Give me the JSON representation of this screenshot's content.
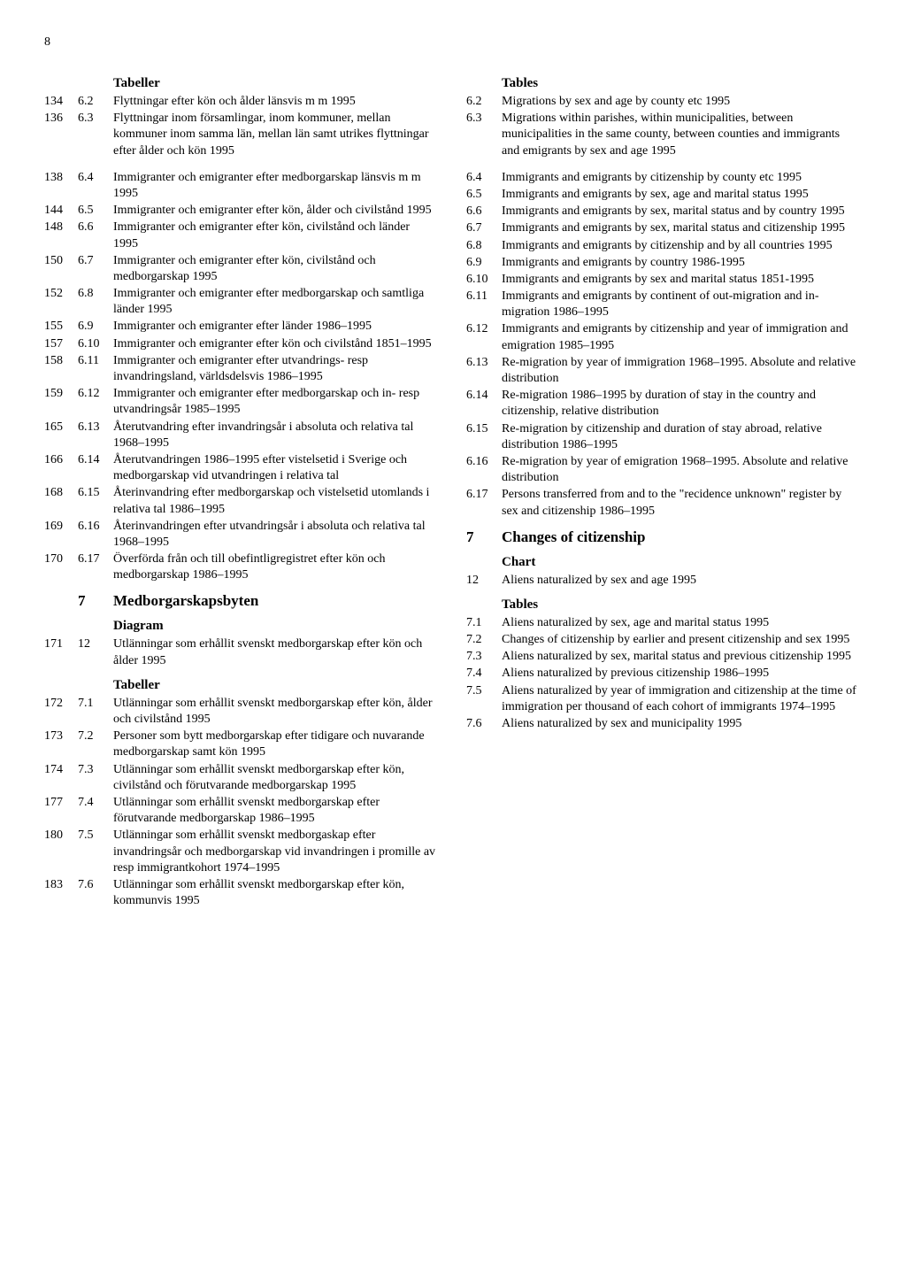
{
  "pageNumber": "8",
  "left": {
    "heading1": "Tabeller",
    "block1": [
      {
        "page": "134",
        "ref": "6.2",
        "desc": "Flyttningar efter kön och ålder länsvis m m 1995"
      },
      {
        "page": "136",
        "ref": "6.3",
        "desc": "Flyttningar inom församlingar, inom kommuner, mellan kommuner inom samma län, mellan län samt utrikes flyttningar efter ålder och kön 1995"
      }
    ],
    "block2": [
      {
        "page": "138",
        "ref": "6.4",
        "desc": "Immigranter och emigranter efter medborgarskap länsvis m m 1995"
      },
      {
        "page": "144",
        "ref": "6.5",
        "desc": "Immigranter och emigranter efter kön, ålder och civilstånd 1995"
      },
      {
        "page": "148",
        "ref": "6.6",
        "desc": "Immigranter och emigranter efter kön, civilstånd och länder 1995"
      },
      {
        "page": "150",
        "ref": "6.7",
        "desc": "Immigranter och emigranter efter kön, civilstånd och medborgarskap 1995"
      },
      {
        "page": "152",
        "ref": "6.8",
        "desc": "Immigranter och emigranter efter medborgarskap och samtliga länder 1995"
      },
      {
        "page": "155",
        "ref": "6.9",
        "desc": "Immigranter och emigranter efter länder 1986–1995"
      },
      {
        "page": "157",
        "ref": "6.10",
        "desc": "Immigranter och emigranter efter kön och civilstånd 1851–1995"
      },
      {
        "page": "158",
        "ref": "6.11",
        "desc": "Immigranter och emigranter efter utvandrings- resp invandringsland, världsdelsvis 1986–1995"
      },
      {
        "page": "159",
        "ref": "6.12",
        "desc": "Immigranter och emigranter efter medborgarskap och in- resp utvandringsår 1985–1995"
      },
      {
        "page": "165",
        "ref": "6.13",
        "desc": "Återutvandring efter invandringsår i absoluta och relativa tal 1968–1995"
      },
      {
        "page": "166",
        "ref": "6.14",
        "desc": "Återutvandringen 1986–1995 efter vistelsetid i Sverige och medborgarskap vid utvandringen i relativa tal"
      },
      {
        "page": "168",
        "ref": "6.15",
        "desc": "Återinvandring efter medborgarskap och vistelsetid utomlands i relativa tal 1986–1995"
      },
      {
        "page": "169",
        "ref": "6.16",
        "desc": "Återinvandringen efter utvandringsår i absoluta och relativa tal 1968–1995"
      },
      {
        "page": "170",
        "ref": "6.17",
        "desc": "Överförda från och till obefintligregistret efter kön och medborgarskap 1986–1995"
      }
    ],
    "chapter7": {
      "ref": "7",
      "title": "Medborgarskapsbyten"
    },
    "diagramLabel": "Diagram",
    "diagramEntries": [
      {
        "page": "171",
        "ref": "12",
        "desc": "Utlänningar som erhållit svenskt medborgarskap efter kön och ålder 1995"
      }
    ],
    "heading2": "Tabeller",
    "block3": [
      {
        "page": "172",
        "ref": "7.1",
        "desc": "Utlänningar som erhållit svenskt medborgarskap efter kön, ålder och civilstånd 1995"
      },
      {
        "page": "173",
        "ref": "7.2",
        "desc": "Personer som bytt medborgarskap efter tidigare och nuvarande medborgarskap samt kön 1995"
      },
      {
        "page": "174",
        "ref": "7.3",
        "desc": "Utlänningar som erhållit svenskt medborgarskap efter kön, civilstånd och förutvarande medborgarskap 1995"
      },
      {
        "page": "177",
        "ref": "7.4",
        "desc": "Utlänningar som erhållit svenskt medborgarskap efter förutvarande medborgarskap 1986–1995"
      },
      {
        "page": "180",
        "ref": "7.5",
        "desc": "Utlänningar som erhållit svenskt medborgaskap efter invandringsår och medborgarskap vid invandringen i promille av resp immigrantkohort 1974–1995"
      },
      {
        "page": "183",
        "ref": "7.6",
        "desc": "Utlänningar som erhållit svenskt medborgarskap efter kön, kommunvis 1995"
      }
    ]
  },
  "right": {
    "heading1": "Tables",
    "block1": [
      {
        "ref": "6.2",
        "desc": "Migrations by sex and age by county etc 1995"
      },
      {
        "ref": "6.3",
        "desc": "Migrations within parishes, within municipalities, between municipalities in the same county, between counties and immigrants and emigrants by sex and age 1995"
      }
    ],
    "block2": [
      {
        "ref": "6.4",
        "desc": "Immigrants and emigrants by citizenship by county etc 1995"
      },
      {
        "ref": "6.5",
        "desc": "Immigrants and emigrants by sex, age and marital status 1995"
      },
      {
        "ref": "6.6",
        "desc": "Immigrants and emigrants by sex, marital status and by country 1995"
      },
      {
        "ref": "6.7",
        "desc": "Immigrants and emigrants by sex, marital status and citizenship 1995"
      },
      {
        "ref": "6.8",
        "desc": "Immigrants and emigrants by citizenship and by all countries 1995"
      },
      {
        "ref": "6.9",
        "desc": "Immigrants and emigrants by country 1986-1995"
      },
      {
        "ref": "6.10",
        "desc": "Immigrants and emigrants by sex and marital status 1851-1995"
      },
      {
        "ref": "6.11",
        "desc": "Immigrants and emigrants by continent of out-migration and in-migration 1986–1995"
      },
      {
        "ref": "6.12",
        "desc": "Immigrants and emigrants by citizenship and year of immigration and emigration 1985–1995"
      },
      {
        "ref": "6.13",
        "desc": "Re-migration by year of immigration 1968–1995. Absolute and relative distribution"
      },
      {
        "ref": "6.14",
        "desc": "Re-migration 1986–1995 by duration of stay in the country and citizenship, relative distribution"
      },
      {
        "ref": "6.15",
        "desc": "Re-migration by citizenship and duration of stay abroad, relative distribution 1986–1995"
      },
      {
        "ref": "6.16",
        "desc": "Re-migration by year of emigration 1968–1995. Absolute and relative distribution"
      },
      {
        "ref": "6.17",
        "desc": "Persons transferred from and to the \"recidence unknown\" register by sex and citizenship 1986–1995"
      }
    ],
    "chapter7": {
      "ref": "7",
      "title": "Changes of citizenship"
    },
    "chartLabel": "Chart",
    "chartEntries": [
      {
        "ref": "12",
        "desc": "Aliens naturalized by sex and age 1995"
      }
    ],
    "heading2": "Tables",
    "block3": [
      {
        "ref": "7.1",
        "desc": "Aliens naturalized by sex, age and marital status 1995"
      },
      {
        "ref": "7.2",
        "desc": "Changes of citizenship by earlier and present citizenship and sex 1995"
      },
      {
        "ref": "7.3",
        "desc": "Aliens naturalized by sex, marital status and previous citizenship 1995"
      },
      {
        "ref": "7.4",
        "desc": "Aliens naturalized by previous citizenship 1986–1995"
      },
      {
        "ref": "7.5",
        "desc": "Aliens naturalized by year of immigration and citizenship at the time of immigration per thousand of each cohort of immigrants 1974–1995"
      },
      {
        "ref": "7.6",
        "desc": "Aliens naturalized by sex and municipality 1995"
      }
    ]
  }
}
